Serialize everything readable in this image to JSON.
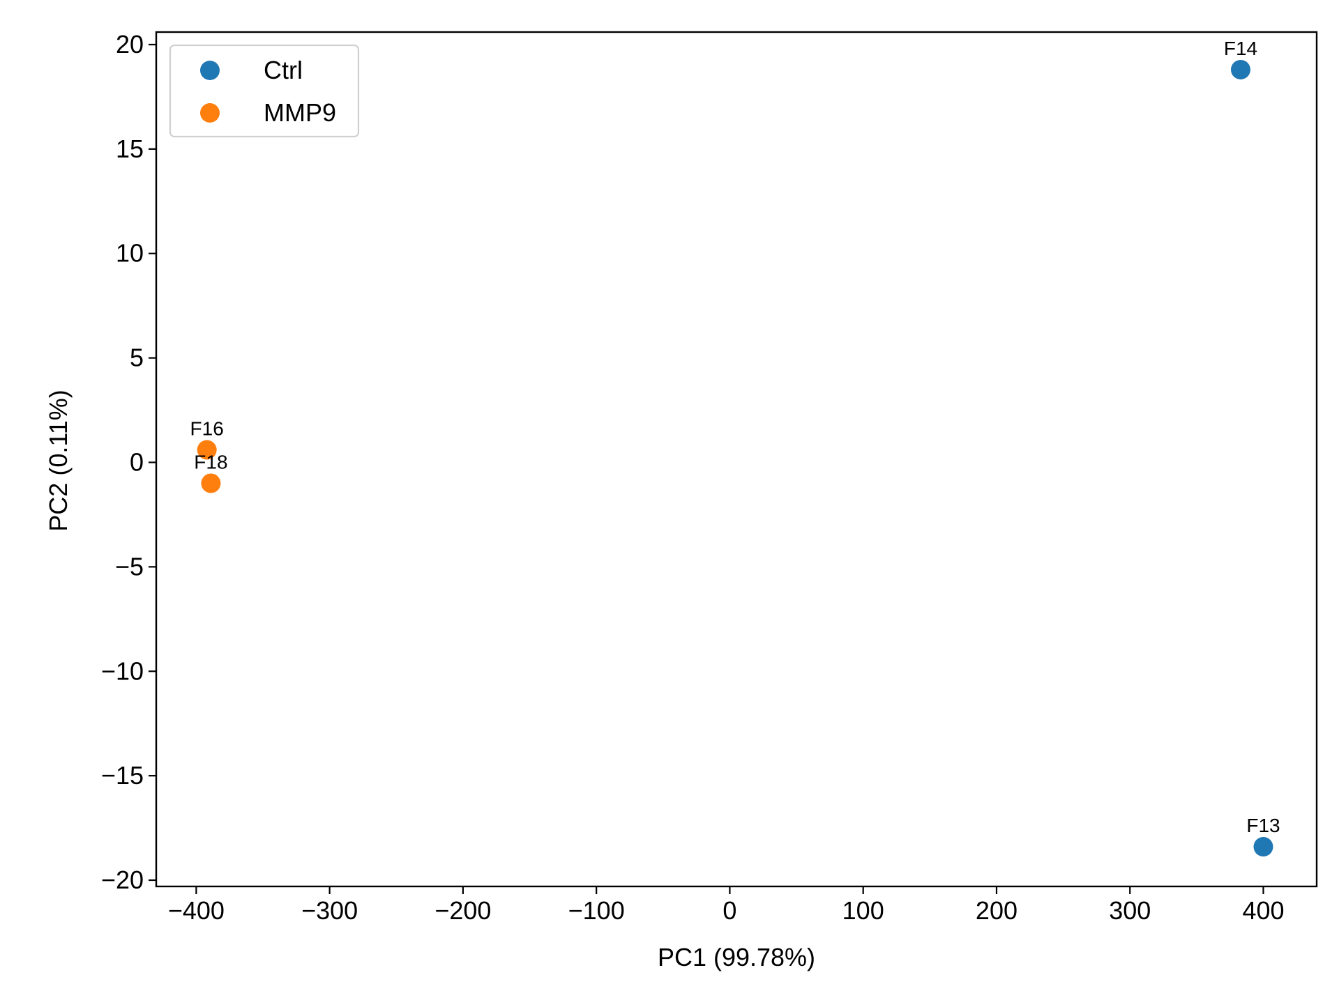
{
  "chart_data": {
    "type": "scatter",
    "xlabel": "PC1 (99.78%)",
    "ylabel": "PC2 (0.11%)",
    "xlim": [
      -430,
      440
    ],
    "ylim": [
      -20.3,
      20.6
    ],
    "grid": false,
    "legend_position": "top-left",
    "x_ticks": [
      -400,
      -300,
      -200,
      -100,
      0,
      100,
      200,
      300,
      400
    ],
    "x_tick_labels": [
      "−400",
      "−300",
      "−200",
      "−100",
      "0",
      "100",
      "200",
      "300",
      "400"
    ],
    "y_ticks": [
      20,
      15,
      10,
      5,
      0,
      -5,
      -10,
      -15,
      -20
    ],
    "y_tick_labels": [
      "20",
      "15",
      "10",
      "5",
      "0",
      "−5",
      "−10",
      "−15",
      "−20"
    ],
    "series": [
      {
        "name": "Ctrl",
        "color": "#1f77b4",
        "points": [
          {
            "label": "F14",
            "x": 383,
            "y": 18.8
          },
          {
            "label": "F13",
            "x": 400,
            "y": -18.4
          }
        ]
      },
      {
        "name": "MMP9",
        "color": "#ff7f0e",
        "points": [
          {
            "label": "F16",
            "x": -392,
            "y": 0.6
          },
          {
            "label": "F18",
            "x": -389,
            "y": -1.0
          }
        ]
      }
    ]
  }
}
